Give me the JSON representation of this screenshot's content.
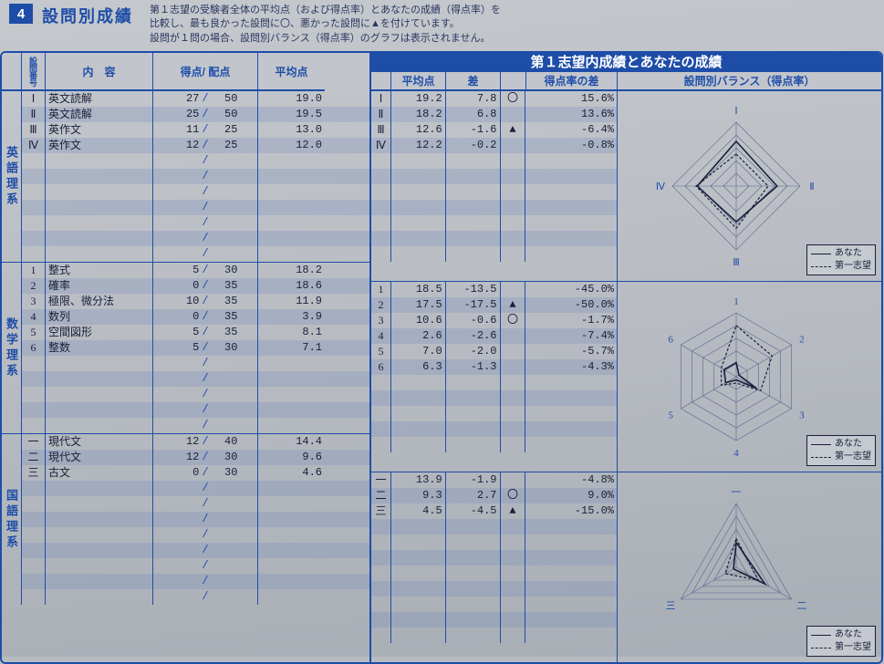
{
  "section_number": "4",
  "section_title": "設問別成績",
  "section_desc_1": "第１志望の受験者全体の平均点（および得点率）とあなたの成績（得点率）を",
  "section_desc_2": "比較し、最も良かった設問に〇、悪かった設問に▲を付けています。",
  "section_desc_3": "設問が１問の場合、設問別バランス（得点率）のグラフは表示されません。",
  "headers_left": {
    "qnum": "設問番号",
    "content": "内　容",
    "score": "得点/ 配点",
    "avg": "平均点"
  },
  "header_right_top": "第１志望内成績とあなたの成績",
  "headers_right": {
    "avg": "平均点",
    "diff": "差",
    "pct": "得点率の差",
    "radar": "設問別バランス（得点率）"
  },
  "legend": {
    "you": "あなた",
    "first": "第一志望"
  },
  "groups": [
    {
      "label": "英語理系",
      "n_rows": 11,
      "radar": {
        "labels": [
          "Ⅰ",
          "Ⅱ",
          "Ⅲ",
          "Ⅳ"
        ],
        "you": [
          0.7,
          0.64,
          0.56,
          0.61
        ],
        "first": [
          0.5,
          0.5,
          0.66,
          0.63
        ]
      },
      "rows": [
        {
          "q": "Ⅰ",
          "content": "英文読解",
          "score": "27",
          "max": "50",
          "avg": "19.0",
          "ravg": "19.2",
          "diff": "7.8",
          "mark": "〇",
          "pct": "15.6%"
        },
        {
          "q": "Ⅱ",
          "content": "英文読解",
          "score": "25",
          "max": "50",
          "avg": "19.5",
          "ravg": "18.2",
          "diff": "6.8",
          "mark": "",
          "pct": "13.6%"
        },
        {
          "q": "Ⅲ",
          "content": "英作文",
          "score": "11",
          "max": "25",
          "avg": "13.0",
          "ravg": "12.6",
          "diff": "-1.6",
          "mark": "▲",
          "pct": "-6.4%"
        },
        {
          "q": "Ⅳ",
          "content": "英作文",
          "score": "12",
          "max": "25",
          "avg": "12.0",
          "ravg": "12.2",
          "diff": "-0.2",
          "mark": "",
          "pct": "-0.8%"
        }
      ]
    },
    {
      "label": "数学理系",
      "n_rows": 11,
      "radar": {
        "labels": [
          "1",
          "2",
          "3",
          "4",
          "5",
          "6"
        ],
        "you": [
          0.22,
          0.05,
          0.37,
          0.05,
          0.19,
          0.22
        ],
        "first": [
          0.8,
          0.65,
          0.44,
          0.1,
          0.27,
          0.27
        ]
      },
      "rows": [
        {
          "q": "1",
          "content": "整式",
          "score": "5",
          "max": "30",
          "avg": "18.2",
          "ravg": "18.5",
          "diff": "-13.5",
          "mark": "",
          "pct": "-45.0%"
        },
        {
          "q": "2",
          "content": "確率",
          "score": "0",
          "max": "35",
          "avg": "18.6",
          "ravg": "17.5",
          "diff": "-17.5",
          "mark": "▲",
          "pct": "-50.0%"
        },
        {
          "q": "3",
          "content": "極限、微分法",
          "score": "10",
          "max": "35",
          "avg": "11.9",
          "ravg": "10.6",
          "diff": "-0.6",
          "mark": "〇",
          "pct": "-1.7%"
        },
        {
          "q": "4",
          "content": "数列",
          "score": "0",
          "max": "35",
          "avg": "3.9",
          "ravg": "2.6",
          "diff": "-2.6",
          "mark": "",
          "pct": "-7.4%"
        },
        {
          "q": "5",
          "content": "空間図形",
          "score": "5",
          "max": "35",
          "avg": "8.1",
          "ravg": "7.0",
          "diff": "-2.0",
          "mark": "",
          "pct": "-5.7%"
        },
        {
          "q": "6",
          "content": "整数",
          "score": "5",
          "max": "30",
          "avg": "7.1",
          "ravg": "6.3",
          "diff": "-1.3",
          "mark": "",
          "pct": "-4.3%"
        }
      ]
    },
    {
      "label": "国語理系",
      "n_rows": 11,
      "radar": {
        "labels": [
          "一",
          "二",
          "三"
        ],
        "you": [
          0.39,
          0.52,
          0.05
        ],
        "first": [
          0.45,
          0.4,
          0.2
        ]
      },
      "rows": [
        {
          "q": "一",
          "content": "現代文",
          "score": "12",
          "max": "40",
          "avg": "14.4",
          "ravg": "13.9",
          "diff": "-1.9",
          "mark": "",
          "pct": "-4.8%"
        },
        {
          "q": "二",
          "content": "現代文",
          "score": "12",
          "max": "30",
          "avg": "9.6",
          "ravg": "9.3",
          "diff": "2.7",
          "mark": "〇",
          "pct": "9.0%"
        },
        {
          "q": "三",
          "content": "古文",
          "score": "0",
          "max": "30",
          "avg": "4.6",
          "ravg": "4.5",
          "diff": "-4.5",
          "mark": "▲",
          "pct": "-15.0%"
        }
      ]
    }
  ],
  "colors": {
    "accent": "#1e4da8",
    "stripe": "rgba(120,140,190,0.28)",
    "line": "#5a6590"
  }
}
